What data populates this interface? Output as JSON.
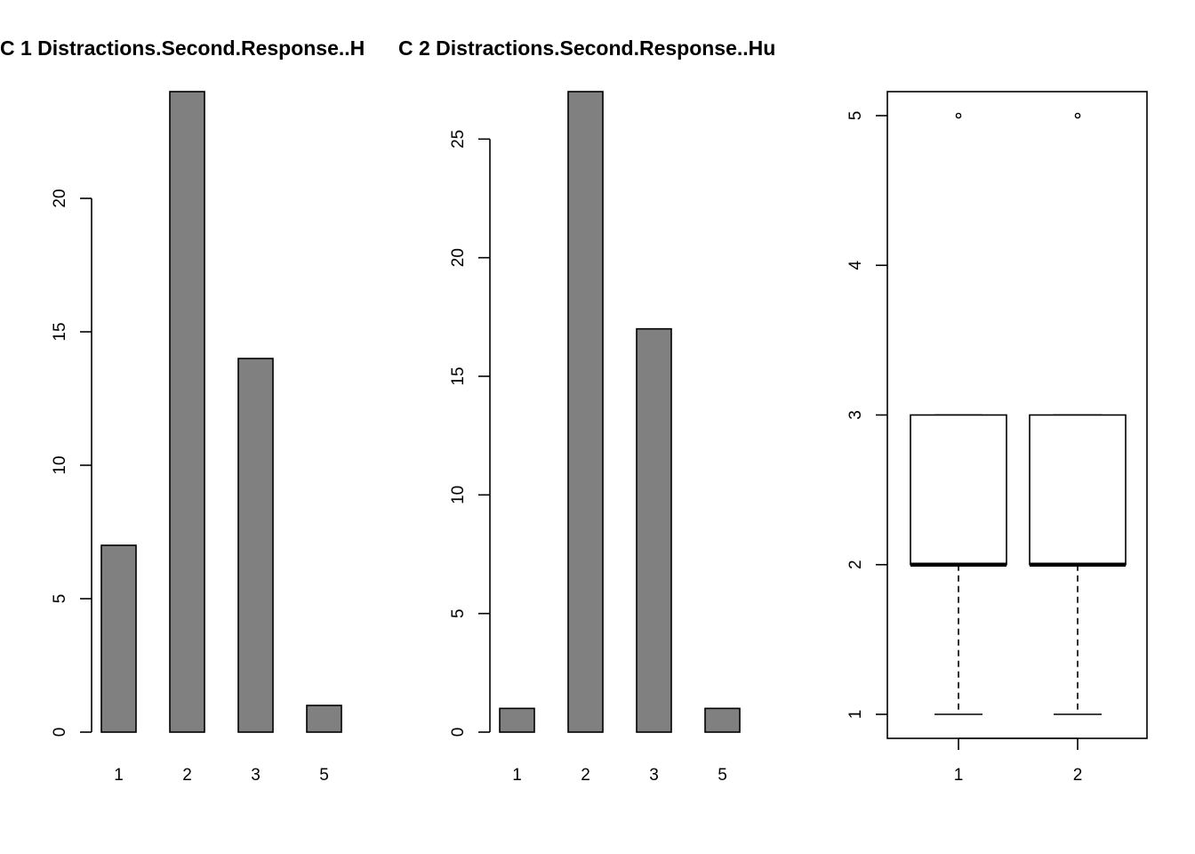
{
  "chart_data": [
    {
      "type": "bar",
      "title": "C 1 Distractions.Second.Response..H",
      "xlabel": "",
      "ylabel": "",
      "categories": [
        "1",
        "2",
        "3",
        "5"
      ],
      "values": [
        7,
        24,
        14,
        1
      ],
      "ylim": [
        0,
        24
      ],
      "yticks": [
        0,
        5,
        10,
        15,
        20
      ],
      "bar_color": "#808080",
      "grid": false
    },
    {
      "type": "bar",
      "title": "C 2 Distractions.Second.Response..Hu",
      "xlabel": "",
      "ylabel": "",
      "categories": [
        "1",
        "2",
        "3",
        "5"
      ],
      "values": [
        1,
        27,
        17,
        1
      ],
      "ylim": [
        0,
        27
      ],
      "yticks": [
        0,
        5,
        10,
        15,
        20,
        25
      ],
      "bar_color": "#808080",
      "grid": false
    },
    {
      "type": "boxplot",
      "title": "",
      "xlabel": "",
      "ylabel": "",
      "categories": [
        "1",
        "2"
      ],
      "boxes": [
        {
          "whisker_low": 1,
          "q1": 2,
          "median": 2,
          "q3": 3,
          "whisker_high": 3,
          "outliers": [
            5
          ]
        },
        {
          "whisker_low": 1,
          "q1": 2,
          "median": 2,
          "q3": 3,
          "whisker_high": 3,
          "outliers": [
            5
          ]
        }
      ],
      "ylim": [
        1,
        5
      ],
      "yticks": [
        1,
        2,
        3,
        4,
        5
      ],
      "grid": false
    }
  ]
}
